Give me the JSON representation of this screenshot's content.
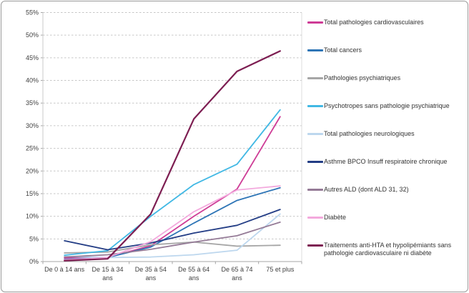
{
  "chart_data": {
    "type": "line",
    "categories": [
      "De 0 à 14 ans",
      "De 15 à 34 ans",
      "De 35 à 54 ans",
      "De 55 à 64 ans",
      "De 65 à 74 ans",
      "75 et plus"
    ],
    "x_tick_lines": [
      [
        "De 0 à 14 ans"
      ],
      [
        "De 15 à 34",
        "ans"
      ],
      [
        "De 35 à 54",
        "ans"
      ],
      [
        "De 55 à 64",
        "ans"
      ],
      [
        "De 65 à 74",
        "ans"
      ],
      [
        "75 et plus"
      ]
    ],
    "y_ticks": [
      "0%",
      "5%",
      "10%",
      "15%",
      "20%",
      "25%",
      "30%",
      "35%",
      "40%",
      "45%",
      "50%",
      "55%"
    ],
    "ylim": [
      0,
      55
    ],
    "ytick_step": 5,
    "grid": "dashed-horizontal",
    "legend_position": "right",
    "title": "",
    "xlabel": "",
    "ylabel": "",
    "series": [
      {
        "name": "Total pathologies cardiovasculaires",
        "color": "#CE3C96",
        "values": [
          0.8,
          0.9,
          3.5,
          10.0,
          16.0,
          32.0
        ]
      },
      {
        "name": "Total cancers",
        "color": "#2E75B6",
        "values": [
          0.5,
          0.9,
          3.2,
          8.5,
          13.5,
          16.3
        ]
      },
      {
        "name": "Pathologies psychiatriques",
        "color": "#A6A6A6",
        "values": [
          1.9,
          2.1,
          3.7,
          4.3,
          3.4,
          3.6
        ]
      },
      {
        "name": "Psychotropes sans pathologie psychiatrique",
        "color": "#41B8E4",
        "values": [
          1.4,
          2.4,
          10.0,
          17.0,
          21.5,
          33.5
        ]
      },
      {
        "name": "Total pathologies neurologiques",
        "color": "#BDD7EE",
        "values": [
          1.1,
          0.9,
          1.0,
          1.5,
          2.5,
          10.5
        ]
      },
      {
        "name": "Asthme BPCO Insuff respiratoire chronique",
        "color": "#233D85",
        "values": [
          4.6,
          2.6,
          4.1,
          6.3,
          8.0,
          11.5
        ]
      },
      {
        "name": "Autres ALD  (dont ALD 31, 32)",
        "color": "#957B97",
        "values": [
          1.0,
          1.5,
          2.7,
          4.3,
          5.7,
          8.7
        ]
      },
      {
        "name": "Diabète",
        "color": "#F3A9DD",
        "values": [
          0.4,
          0.9,
          4.4,
          11.0,
          15.8,
          16.7
        ]
      },
      {
        "name": "Traitements anti-HTA et hypolipémiants sans pathologie cardiovasculaire ni diabète",
        "color": "#7D1E52",
        "values": [
          0.2,
          0.6,
          10.5,
          31.5,
          42.0,
          46.5
        ]
      }
    ],
    "colors": {
      "grid": "#C6C6C6",
      "axis": "#A6A6A6",
      "tick_text": "#404040",
      "background": "#FFFFFF",
      "frame_border": "#9B9B9B"
    }
  }
}
